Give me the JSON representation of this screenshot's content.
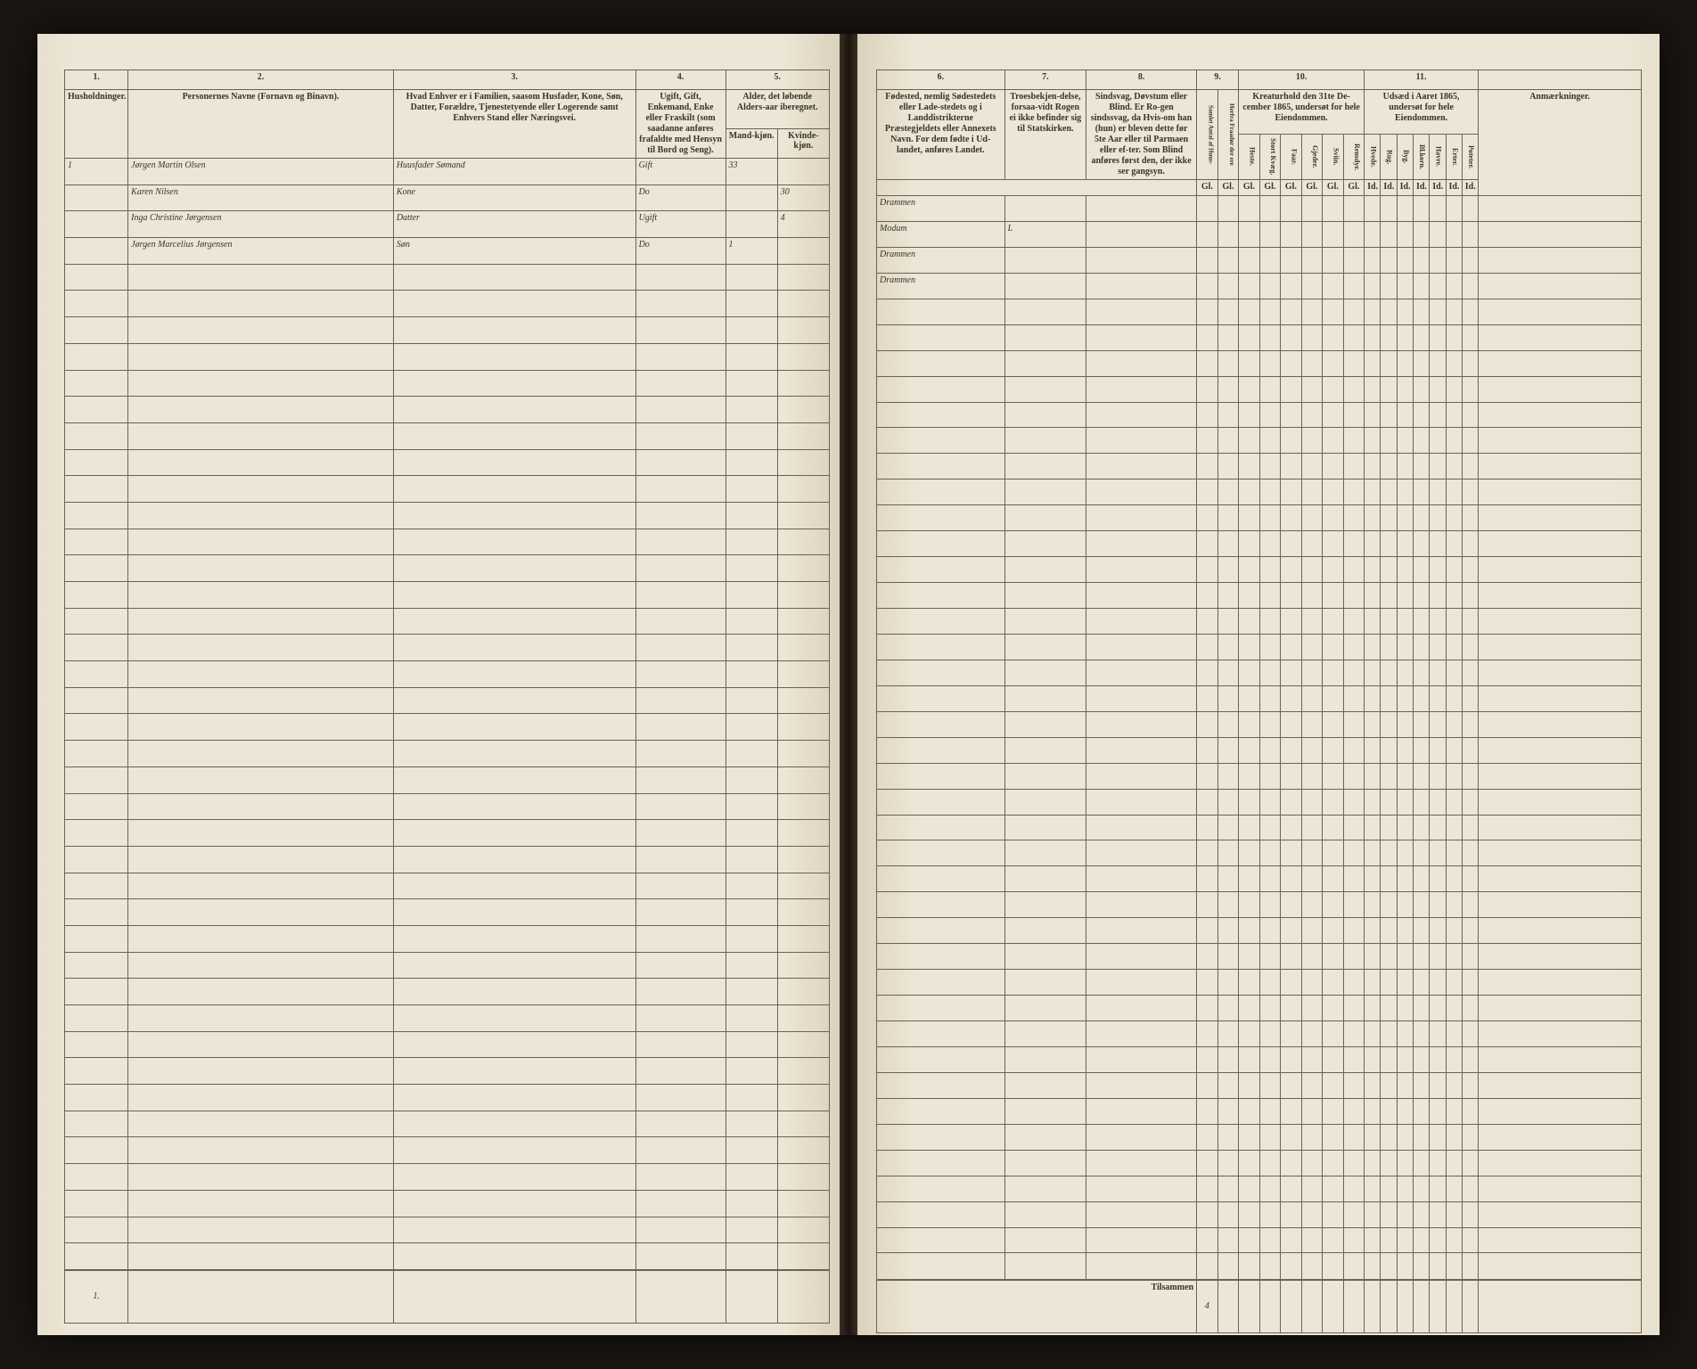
{
  "type": "table",
  "description": "Norwegian 1865 census register, open ledger book double-page spread",
  "background_color": "#ede6d6",
  "border_color": "#6b6250",
  "text_color": "#3a3428",
  "handwriting_color": "#4a3f2e",
  "left_page": {
    "column_numbers": [
      "1.",
      "2.",
      "3.",
      "4.",
      "5."
    ],
    "headers": {
      "col1": "Husholdninger.",
      "col2": "Personernes Navne (Fornavn og Binavn).",
      "col3": "Hvad Enhver er i Familien, saasom Husfader, Kone, Søn, Datter, Forældre, Tjenestetyende eller Logerende samt Enhvers Stand eller Næringsvei.",
      "col4": "Ugift, Gift, Enkemand, Enke eller Fraskilt (som saadanne anføres frafaldte med Hensyn til Bord og Seng).",
      "col5": "Alder, det løbende Alders-aar iberegnet.",
      "col5a": "Mand-kjøn.",
      "col5b": "Kvinde-kjøn."
    },
    "rows": [
      {
        "num": "1",
        "name": "Jørgen Martin Olsen",
        "role": "Huusfader Sømand",
        "status": "Gift",
        "age_m": "33",
        "age_f": ""
      },
      {
        "num": "",
        "name": "Karen Nilsen",
        "role": "Kone",
        "status": "Do",
        "age_m": "",
        "age_f": "30"
      },
      {
        "num": "",
        "name": "Inga Christine Jørgensen",
        "role": "Datter",
        "status": "Ugift",
        "age_m": "",
        "age_f": "4"
      },
      {
        "num": "",
        "name": "Jørgen Marcelius Jørgensen",
        "role": "Søn",
        "status": "Do",
        "age_m": "1",
        "age_f": ""
      }
    ],
    "footer_num": "1.",
    "empty_rows": 38
  },
  "right_page": {
    "column_numbers": [
      "6.",
      "7.",
      "8.",
      "9.",
      "10.",
      "11.",
      ""
    ],
    "headers": {
      "col6": "Fødested, nemlig Sødestedets eller Lade-stedets og i Landdistrikterne Præstegjeldets eller Annexets Navn. For dem fødte i Ud-landet, anføres Landet.",
      "col7": "Troesbekjen-delse, forsaa-vidt Rogen ei ikke befinder sig til Statskirken.",
      "col8": "Sindsvag, Døvstum eller Blind. Er Ro-gen sindssvag, da Hvis-om han (hun) er bleven dette før 5te Aar eller til Parmaen eller ef-ter. Som Blind anføres først den, der ikke ser gangsyn.",
      "col9a": "Samlet Antal af Huus-",
      "col9b": "Herfra Fraadør der ere",
      "col10": "Kreaturhold den 31te De-cember 1865, undersøt for hele Eiendommen.",
      "col10_subs": [
        "Heste.",
        "Stort Kvæg.",
        "Faar.",
        "Gjeder.",
        "Sviin.",
        "Rensdyr."
      ],
      "col11": "Udsæd i Aaret 1865, undersøt for hele Eiendommen.",
      "col11_subs": [
        "Hvede.",
        "Rug.",
        "Byg.",
        "Bl.korn.",
        "Havre.",
        "Erter.",
        "Poteter."
      ],
      "col12": "Anmærkninger."
    },
    "sub_marks": [
      "Gl.",
      "Gl.",
      "Gl.",
      "Gl.",
      "Gl.",
      "Gl.",
      "Id.",
      "Id.",
      "Id.",
      "Id.",
      "Id.",
      "Id.",
      "Id."
    ],
    "rows": [
      {
        "birthplace": "Drammen",
        "faith": ""
      },
      {
        "birthplace": "Modum",
        "faith": "L"
      },
      {
        "birthplace": "Drammen",
        "faith": ""
      },
      {
        "birthplace": "Drammen",
        "faith": ""
      }
    ],
    "footer_label": "Tilsammen",
    "footer_value": "4",
    "empty_rows": 38
  }
}
